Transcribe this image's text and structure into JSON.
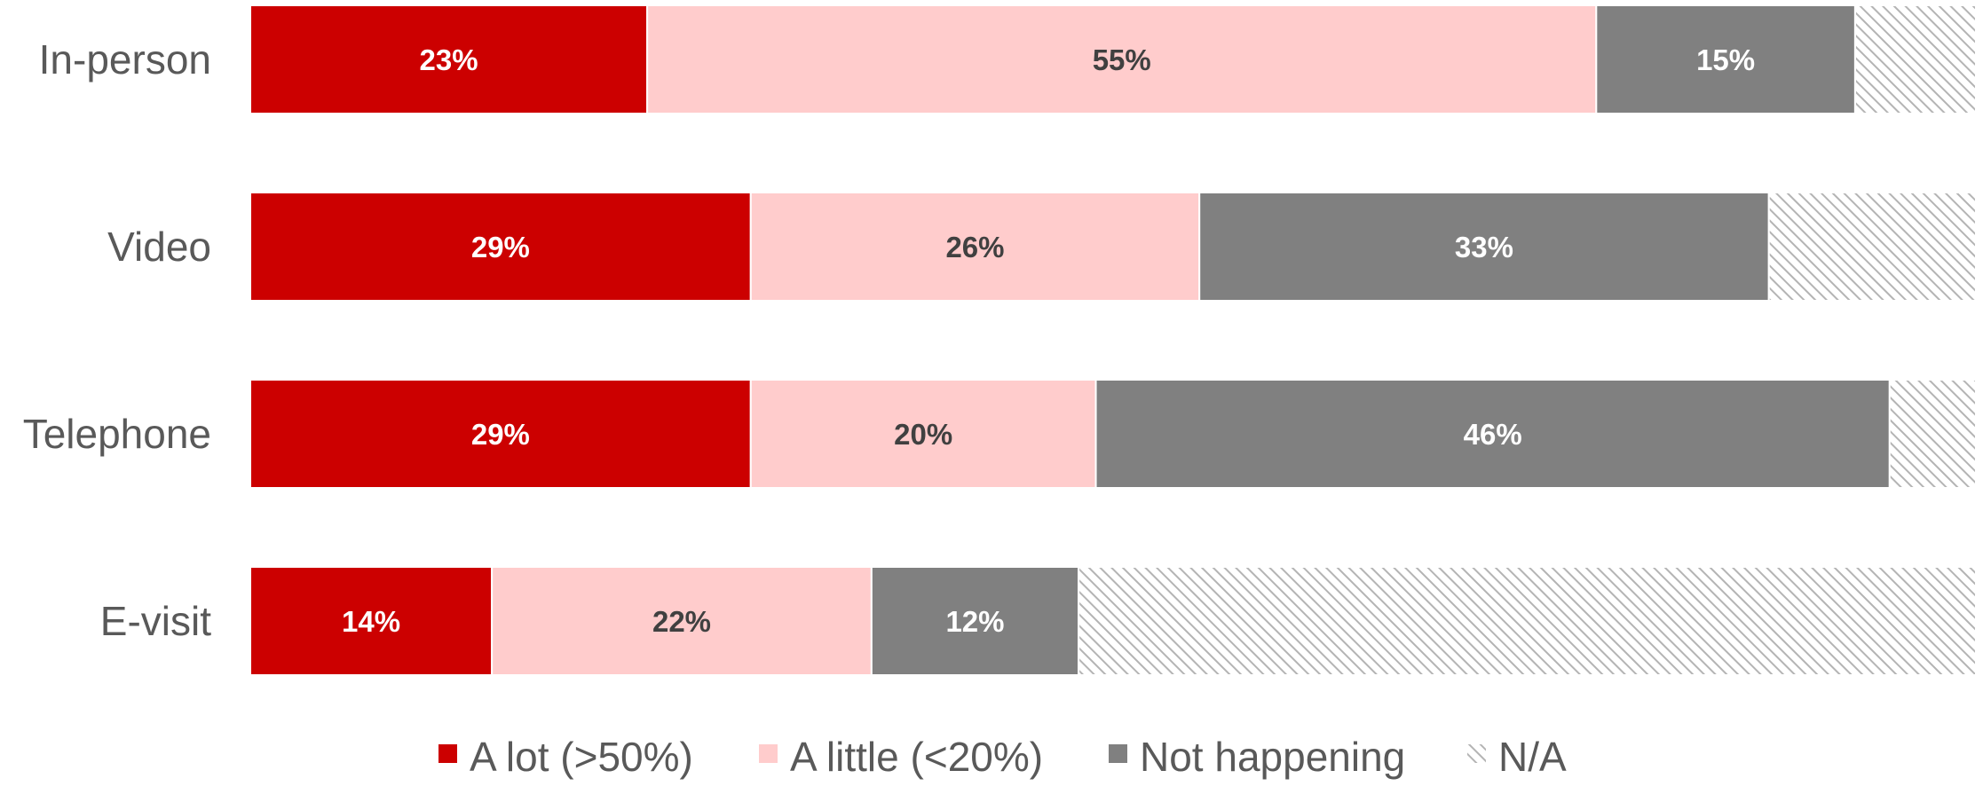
{
  "chart_data": {
    "type": "bar",
    "orientation": "horizontal",
    "stacked": true,
    "categories": [
      "In-person",
      "Video",
      "Telephone",
      "E-visit"
    ],
    "series": [
      {
        "name": "A lot (>50%)",
        "color": "#cc0000",
        "label_color": "#ffffff",
        "pattern": "solid",
        "values": [
          23,
          29,
          29,
          14
        ],
        "labels": [
          "23%",
          "29%",
          "29%",
          "14%"
        ]
      },
      {
        "name": "A little (<20%)",
        "color": "#ffcccc",
        "label_color": "#404040",
        "pattern": "solid",
        "values": [
          55,
          26,
          20,
          22
        ],
        "labels": [
          "55%",
          "26%",
          "20%",
          "22%"
        ]
      },
      {
        "name": "Not happening",
        "color": "#808080",
        "label_color": "#ffffff",
        "pattern": "solid",
        "values": [
          15,
          33,
          46,
          12
        ],
        "labels": [
          "15%",
          "33%",
          "46%",
          "12%"
        ]
      },
      {
        "name": "N/A",
        "color": "#c8c8c8",
        "label_color": "#404040",
        "pattern": "hatched",
        "values": [
          7,
          12,
          5,
          52
        ],
        "labels": [
          "",
          "",
          "",
          ""
        ]
      }
    ],
    "xlim": [
      0,
      100
    ],
    "grid": false,
    "legend_position": "bottom"
  }
}
